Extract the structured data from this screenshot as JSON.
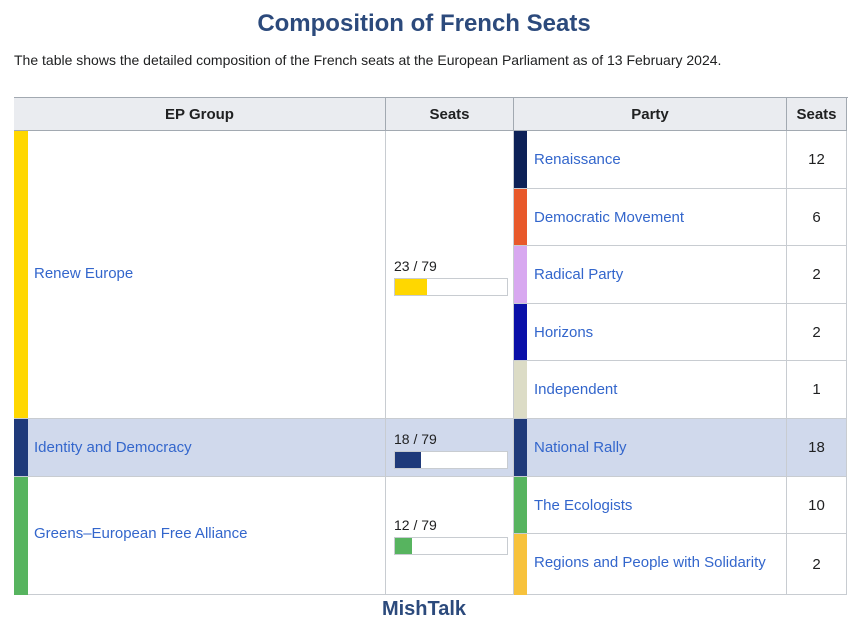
{
  "title": "Composition of French Seats",
  "subtitle": "The table shows the detailed composition of the French seats at the European Parliament as of 13 February 2024.",
  "headers": {
    "group": "EP Group",
    "group_seats": "Seats",
    "party": "Party",
    "party_seats": "Seats"
  },
  "groups": [
    {
      "name": "Renew Europe",
      "seats_label": "23 / 79",
      "seats": 23,
      "total": 79,
      "color": "#ffd700"
    },
    {
      "name": "Identity and Democracy",
      "seats_label": "18 / 79",
      "seats": 18,
      "total": 79,
      "color": "#1f3a7a"
    },
    {
      "name": "Greens–European Free Alliance",
      "seats_label": "12 / 79",
      "seats": 12,
      "total": 79,
      "color": "#57b45f"
    }
  ],
  "parties": [
    {
      "name": "Renaissance",
      "seats": "12",
      "color": "#0d2157"
    },
    {
      "name": "Democratic Movement",
      "seats": "6",
      "color": "#e8592b"
    },
    {
      "name": "Radical Party",
      "seats": "2",
      "color": "#d8a8f0"
    },
    {
      "name": "Horizons",
      "seats": "2",
      "color": "#0a10a8"
    },
    {
      "name": "Independent",
      "seats": "1",
      "color": "#dcdcc6"
    },
    {
      "name": "National Rally",
      "seats": "18",
      "color": "#1f3a7a"
    },
    {
      "name": "The Ecologists",
      "seats": "10",
      "color": "#57b45f"
    },
    {
      "name": "Regions and People with Solidarity",
      "seats": "2",
      "color": "#f7c23c"
    }
  ],
  "footer": "MishTalk"
}
